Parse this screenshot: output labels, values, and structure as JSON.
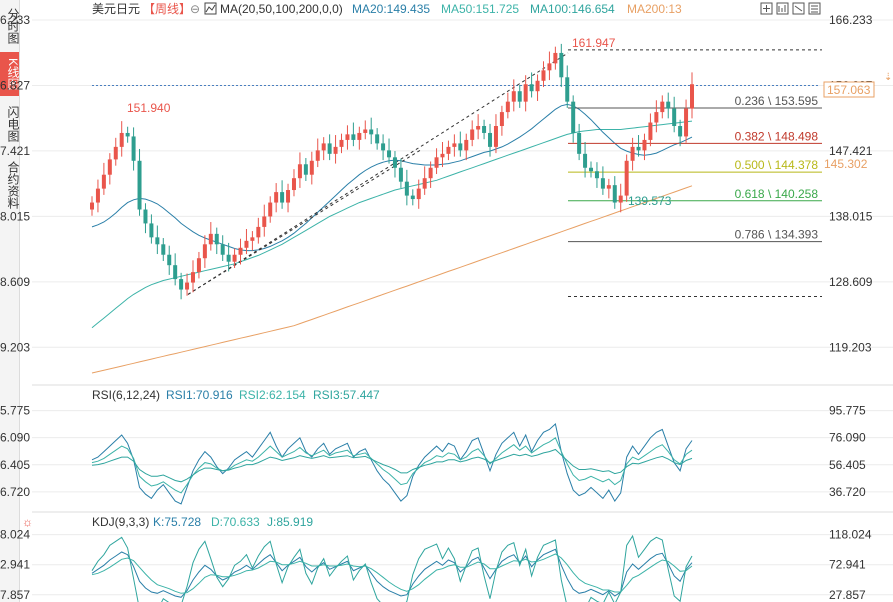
{
  "sidebar": {
    "tabs": [
      {
        "label": "分时图",
        "active": false
      },
      {
        "label": "K线图",
        "active": true
      },
      {
        "label": "闪电图",
        "active": false
      },
      {
        "label": "合约资料",
        "active": false
      }
    ]
  },
  "header": {
    "symbol": "美元日元",
    "period": "【周线】",
    "ma_label": "MA(20,50,100,200,0,0)",
    "ma20": "MA20:149.435",
    "ma50": "MA50:151.725",
    "ma100": "MA100:146.654",
    "ma200": "MA200:13"
  },
  "toolbar": {
    "icons": [
      "crosshair-icon",
      "chart-icon",
      "toggle-icon",
      "expand-icon",
      "collapse-icon"
    ]
  },
  "colors": {
    "up": "#e9554b",
    "down": "#2e9e8f",
    "ma20": "#2a7fa8",
    "ma50": "#3cb3a8",
    "ma100": "#2fa59e",
    "ma200": "#e8a064",
    "fib_red": "#c0392b",
    "fib_green": "#3aa84a",
    "fib_olive": "#b8b818",
    "grid": "#ececec"
  },
  "chart_data": {
    "type": "candlestick",
    "y_ticks": [
      "166.233",
      "156.827",
      "147.421",
      "138.015",
      "128.609",
      "119.203"
    ],
    "ylim": [
      114.5,
      166.233
    ],
    "current_price": "157.063",
    "dashed_level": "156.827",
    "ma200_tag": "145.302",
    "annotations": {
      "high": "161.947",
      "low": "139.573",
      "left_high": "151.940"
    },
    "fibonacci": [
      {
        "label": "0.236 \\ 153.595",
        "value": 153.595,
        "color": "#555555"
      },
      {
        "label": "0.382 \\ 148.498",
        "value": 148.498,
        "color": "#c0392b"
      },
      {
        "label": "0.500 \\ 144.378",
        "value": 144.378,
        "color": "#b8b818"
      },
      {
        "label": "0.618 \\ 140.258",
        "value": 140.258,
        "color": "#3aa84a"
      },
      {
        "label": "0.786 \\ 134.393",
        "value": 134.393,
        "color": "#555555"
      }
    ],
    "closes": [
      140.0,
      142.0,
      144.0,
      146.2,
      148.0,
      150.0,
      149.5,
      146.0,
      139.0,
      137.0,
      135.0,
      134.0,
      132.5,
      131.0,
      129.0,
      127.5,
      128.5,
      130.0,
      132.0,
      134.0,
      135.5,
      134.0,
      132.5,
      131.5,
      132.5,
      133.5,
      134.5,
      135.0,
      136.5,
      138.0,
      140.0,
      141.5,
      140.0,
      141.8,
      143.5,
      145.5,
      144.0,
      146.0,
      147.5,
      148.5,
      147.0,
      148.0,
      149.0,
      149.8,
      149.0,
      150.0,
      150.5,
      149.8,
      148.5,
      147.5,
      146.5,
      145.0,
      143.0,
      141.0,
      140.5,
      142.0,
      143.5,
      145.0,
      146.5,
      147.0,
      148.0,
      148.5,
      147.5,
      149.0,
      150.5,
      151.0,
      150.0,
      148.0,
      151.0,
      153.0,
      154.5,
      156.0,
      154.5,
      157.0,
      156.0,
      157.5,
      159.0,
      160.0,
      161.5,
      158.0,
      154.5,
      150.0,
      147.0,
      145.0,
      144.5,
      143.5,
      142.0,
      142.5,
      140.0,
      141.0,
      146.0,
      148.0,
      147.5,
      149.0,
      151.5,
      153.0,
      154.5,
      153.5,
      151.0,
      149.5,
      153.5,
      157.0
    ],
    "ma20": [
      136.5,
      136.8,
      137.2,
      137.8,
      138.5,
      139.3,
      140.0,
      140.4,
      140.6,
      140.5,
      140.2,
      139.8,
      139.2,
      138.5,
      137.8,
      137.0,
      136.4,
      135.8,
      135.3,
      134.9,
      134.6,
      134.3,
      134.0,
      133.7,
      133.4,
      133.2,
      133.1,
      133.1,
      133.2,
      133.4,
      133.7,
      134.1,
      134.5,
      135.0,
      135.6,
      136.3,
      137.0,
      137.8,
      138.6,
      139.4,
      140.2,
      141.0,
      141.8,
      142.6,
      143.3,
      144.0,
      144.6,
      145.1,
      145.5,
      145.8,
      146.0,
      146.1,
      146.0,
      145.8,
      145.6,
      145.5,
      145.4,
      145.4,
      145.4,
      145.5,
      145.6,
      145.8,
      146.0,
      146.3,
      146.6,
      146.9,
      147.2,
      147.4,
      147.7,
      148.0,
      148.4,
      148.9,
      149.4,
      150.0,
      150.6,
      151.3,
      152.0,
      152.7,
      153.4,
      153.9,
      154.1,
      153.9,
      153.4,
      152.7,
      151.9,
      151.0,
      150.1,
      149.3,
      148.5,
      147.8,
      147.4,
      147.1,
      146.9,
      146.8,
      146.9,
      147.1,
      147.5,
      147.9,
      148.3,
      148.6,
      149.0,
      149.4
    ],
    "ma50": [
      122.0,
      122.7,
      123.4,
      124.1,
      124.8,
      125.5,
      126.2,
      126.8,
      127.3,
      127.8,
      128.2,
      128.5,
      128.8,
      129.0,
      129.2,
      129.4,
      129.6,
      129.8,
      130.0,
      130.2,
      130.4,
      130.6,
      130.8,
      131.0,
      131.2,
      131.5,
      131.8,
      132.1,
      132.4,
      132.8,
      133.2,
      133.6,
      134.0,
      134.5,
      135.0,
      135.5,
      136.0,
      136.5,
      137.0,
      137.5,
      138.0,
      138.4,
      138.8,
      139.2,
      139.6,
      140.0,
      140.3,
      140.6,
      140.9,
      141.2,
      141.5,
      141.8,
      142.0,
      142.2,
      142.4,
      142.6,
      142.8,
      143.0,
      143.2,
      143.5,
      143.8,
      144.1,
      144.4,
      144.7,
      145.0,
      145.3,
      145.6,
      145.9,
      146.2,
      146.5,
      146.8,
      147.1,
      147.4,
      147.7,
      148.0,
      148.3,
      148.6,
      148.9,
      149.2,
      149.5,
      149.8,
      150.0,
      150.2,
      150.3,
      150.4,
      150.5,
      150.5,
      150.5,
      150.5,
      150.5,
      150.6,
      150.7,
      150.8,
      150.9,
      151.0,
      151.1,
      151.2,
      151.3,
      151.4,
      151.5,
      151.6,
      151.7
    ],
    "ma200": [
      115.5,
      115.7,
      115.9,
      116.1,
      116.3,
      116.5,
      116.7,
      116.9,
      117.1,
      117.3,
      117.5,
      117.7,
      117.9,
      118.1,
      118.3,
      118.5,
      118.7,
      118.9,
      119.1,
      119.3,
      119.5,
      119.7,
      119.9,
      120.1,
      120.3,
      120.5,
      120.7,
      120.9,
      121.1,
      121.3,
      121.5,
      121.7,
      121.9,
      122.1,
      122.3,
      122.6,
      122.9,
      123.2,
      123.5,
      123.8,
      124.1,
      124.4,
      124.7,
      125.0,
      125.3,
      125.6,
      125.9,
      126.2,
      126.5,
      126.8,
      127.1,
      127.4,
      127.7,
      128.0,
      128.3,
      128.6,
      128.9,
      129.2,
      129.5,
      129.8,
      130.1,
      130.4,
      130.7,
      131.0,
      131.3,
      131.6,
      131.9,
      132.2,
      132.5,
      132.8,
      133.1,
      133.4,
      133.7,
      134.0,
      134.3,
      134.6,
      134.9,
      135.2,
      135.5,
      135.8,
      136.1,
      136.4,
      136.7,
      137.0,
      137.3,
      137.6,
      137.9,
      138.2,
      138.5,
      138.8,
      139.1,
      139.4,
      139.7,
      140.0,
      140.3,
      140.6,
      140.9,
      141.2,
      141.5,
      141.8,
      142.1,
      142.4
    ],
    "rsi": {
      "title": "RSI(6,12,24)",
      "rsi1": "RSI1:70.916",
      "rsi2": "RSI2:62.154",
      "rsi3": "RSI3:57.447",
      "y_ticks": [
        "95.775",
        "76.090",
        "56.405",
        "36.720"
      ],
      "ylim": [
        25,
        102
      ],
      "series1": [
        60,
        62,
        66,
        70,
        74,
        78,
        72,
        60,
        40,
        35,
        32,
        38,
        42,
        36,
        30,
        28,
        40,
        52,
        60,
        66,
        62,
        55,
        50,
        54,
        60,
        63,
        66,
        62,
        68,
        74,
        80,
        70,
        62,
        68,
        72,
        76,
        66,
        62,
        68,
        72,
        64,
        68,
        70,
        72,
        62,
        66,
        68,
        60,
        52,
        46,
        42,
        36,
        30,
        34,
        48,
        56,
        62,
        66,
        70,
        66,
        72,
        70,
        60,
        66,
        74,
        76,
        64,
        52,
        64,
        72,
        76,
        80,
        70,
        78,
        66,
        74,
        80,
        82,
        86,
        66,
        50,
        38,
        34,
        36,
        40,
        36,
        32,
        38,
        30,
        36,
        62,
        70,
        64,
        70,
        76,
        80,
        82,
        70,
        58,
        52,
        68,
        74
      ],
      "series2": [
        58,
        59,
        61,
        64,
        67,
        70,
        68,
        61,
        48,
        44,
        41,
        42,
        44,
        41,
        38,
        36,
        42,
        49,
        54,
        58,
        57,
        54,
        52,
        53,
        56,
        58,
        60,
        59,
        62,
        66,
        70,
        66,
        62,
        64,
        66,
        69,
        65,
        63,
        65,
        67,
        63,
        65,
        66,
        67,
        63,
        64,
        65,
        61,
        57,
        53,
        50,
        46,
        42,
        43,
        50,
        54,
        58,
        60,
        63,
        62,
        65,
        64,
        60,
        62,
        66,
        68,
        63,
        57,
        61,
        65,
        68,
        71,
        67,
        70,
        65,
        68,
        71,
        73,
        76,
        66,
        57,
        49,
        45,
        46,
        48,
        46,
        44,
        46,
        42,
        45,
        57,
        62,
        60,
        63,
        66,
        69,
        71,
        66,
        60,
        57,
        64,
        67
      ],
      "series3": [
        56,
        56.5,
        57.5,
        59,
        60.5,
        62,
        62,
        59,
        53,
        50,
        48,
        48,
        49,
        47,
        45,
        44,
        46,
        49,
        52,
        54,
        54,
        53,
        52,
        52.5,
        54,
        55,
        56.5,
        56.5,
        58,
        60,
        62,
        61,
        59.5,
        60.5,
        61.5,
        63,
        62,
        61,
        62,
        63,
        61.5,
        62,
        62.5,
        63,
        61.5,
        62,
        62.5,
        60.5,
        58.5,
        56.5,
        55,
        53,
        50.5,
        50.5,
        53,
        54.5,
        56,
        57,
        58.5,
        58.5,
        60,
        60,
        58.5,
        59.5,
        61,
        62,
        60.5,
        58,
        59.5,
        61,
        62.5,
        64,
        63,
        64,
        62.5,
        63.5,
        65,
        66,
        67.5,
        63.5,
        59.5,
        55.5,
        53,
        53,
        53.5,
        52.5,
        51.5,
        52,
        50,
        51,
        55,
        57.5,
        57,
        58.5,
        60,
        61.5,
        62.5,
        60.5,
        58,
        56.5,
        59.5,
        61
      ]
    },
    "kdj": {
      "title": "KDJ(9,3,3)",
      "k": "K:75.728",
      "d": "D:70.633",
      "j": "J:85.919",
      "y_ticks": [
        "118.024",
        "72.941",
        "27.857"
      ],
      "ylim": [
        20,
        125
      ],
      "kseries": [
        60,
        66,
        72,
        80,
        86,
        92,
        88,
        70,
        48,
        38,
        32,
        30,
        34,
        30,
        26,
        24,
        34,
        50,
        62,
        72,
        66,
        56,
        50,
        54,
        62,
        66,
        72,
        66,
        74,
        82,
        88,
        76,
        64,
        72,
        78,
        84,
        70,
        62,
        70,
        76,
        66,
        70,
        74,
        78,
        64,
        68,
        72,
        60,
        48,
        40,
        34,
        30,
        26,
        28,
        44,
        56,
        66,
        72,
        78,
        72,
        80,
        76,
        62,
        70,
        80,
        84,
        68,
        52,
        66,
        78,
        84,
        88,
        76,
        86,
        70,
        80,
        88,
        92,
        96,
        72,
        52,
        36,
        30,
        32,
        36,
        32,
        28,
        34,
        26,
        32,
        62,
        74,
        66,
        74,
        82,
        88,
        90,
        74,
        56,
        48,
        66,
        76
      ],
      "dseries": [
        58,
        60,
        64,
        69,
        75,
        81,
        83,
        79,
        69,
        59,
        50,
        43,
        40,
        37,
        33,
        30,
        31,
        37,
        45,
        54,
        58,
        57,
        55,
        55,
        57,
        60,
        64,
        65,
        68,
        73,
        78,
        77,
        73,
        73,
        75,
        78,
        75,
        71,
        71,
        73,
        71,
        71,
        72,
        74,
        71,
        70,
        71,
        67,
        61,
        54,
        47,
        41,
        36,
        33,
        37,
        43,
        51,
        58,
        65,
        67,
        71,
        73,
        69,
        69,
        73,
        77,
        74,
        67,
        67,
        71,
        75,
        79,
        78,
        81,
        77,
        78,
        81,
        85,
        89,
        83,
        73,
        61,
        51,
        45,
        42,
        39,
        35,
        35,
        32,
        32,
        42,
        53,
        57,
        63,
        69,
        75,
        80,
        78,
        71,
        63,
        64,
        71
      ],
      "jseries": [
        64,
        78,
        88,
        102,
        108,
        114,
        98,
        52,
        6,
        0,
        0,
        4,
        22,
        16,
        12,
        12,
        40,
        76,
        96,
        108,
        82,
        54,
        40,
        52,
        72,
        78,
        88,
        68,
        86,
        100,
        108,
        74,
        46,
        70,
        84,
        96,
        60,
        44,
        68,
        82,
        56,
        68,
        78,
        86,
        50,
        64,
        74,
        46,
        22,
        12,
        8,
        8,
        6,
        18,
        58,
        82,
        96,
        100,
        104,
        82,
        98,
        82,
        48,
        72,
        94,
        98,
        56,
        22,
        64,
        92,
        102,
        106,
        72,
        96,
        56,
        84,
        102,
        106,
        110,
        50,
        10,
        0,
        0,
        6,
        24,
        18,
        14,
        32,
        14,
        32,
        102,
        116,
        84,
        96,
        108,
        114,
        110,
        66,
        26,
        18,
        70,
        86
      ]
    }
  }
}
